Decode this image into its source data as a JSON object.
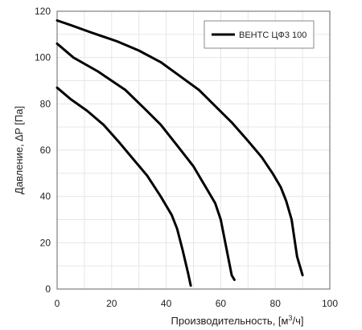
{
  "chart_data": {
    "type": "line",
    "title": "",
    "xlabel_main": "Производительность, [м",
    "xlabel_sup": "3",
    "xlabel_tail": "/ч]",
    "ylabel": "Давление, ∆P [Па]",
    "xlim": [
      0,
      100
    ],
    "ylim": [
      0,
      120
    ],
    "xticks": [
      0,
      20,
      40,
      60,
      80,
      100
    ],
    "yticks": [
      0,
      20,
      40,
      60,
      80,
      100,
      120
    ],
    "grid": true,
    "legend": {
      "position": "top-right",
      "label": "ВЕНТС ЦФ3 100"
    },
    "series_color": "#000000",
    "series": [
      {
        "x": [
          0,
          5,
          11,
          17,
          23,
          28,
          33,
          38,
          42,
          44,
          46,
          48,
          49
        ],
        "y": [
          87,
          82,
          77,
          71,
          63,
          56,
          49,
          40,
          32,
          26,
          17,
          7,
          1.5
        ]
      },
      {
        "x": [
          0,
          6,
          15,
          25,
          32,
          38,
          44,
          50,
          55,
          58,
          60,
          62,
          64,
          65
        ],
        "y": [
          106,
          100,
          94,
          86,
          78,
          71,
          62,
          53,
          43,
          37,
          30,
          18,
          6,
          4
        ]
      },
      {
        "x": [
          0,
          5,
          12,
          22,
          30,
          38,
          45,
          52,
          58,
          64,
          70,
          75,
          79,
          82,
          84,
          86,
          88,
          90
        ],
        "y": [
          116,
          114,
          111,
          107,
          103,
          98,
          92,
          86,
          79,
          72,
          64,
          57,
          50,
          44,
          38,
          30,
          14,
          6
        ]
      }
    ]
  }
}
